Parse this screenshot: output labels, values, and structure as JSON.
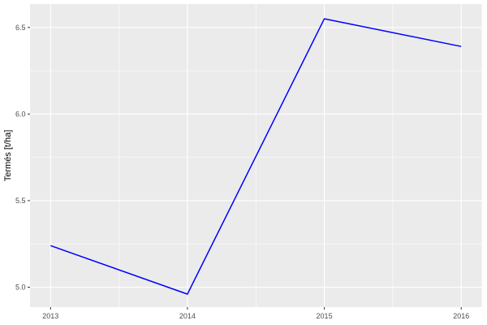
{
  "chart_data": {
    "type": "line",
    "title": "",
    "xlabel": "",
    "ylabel": "Termés [t/ha]",
    "x": [
      2013,
      2014,
      2015,
      2016
    ],
    "series": [
      {
        "name": "Termés",
        "values": [
          5.24,
          4.96,
          6.55,
          6.39
        ]
      }
    ],
    "xlim": [
      2012.85,
      2016.15
    ],
    "ylim": [
      4.885,
      6.635
    ],
    "x_ticks": [
      2013,
      2014,
      2015,
      2016
    ],
    "x_tick_labels": [
      "2013",
      "2014",
      "2015",
      "2016"
    ],
    "y_ticks": [
      5.0,
      5.5,
      6.0,
      6.5
    ],
    "y_tick_labels": [
      "5.0",
      "5.5",
      "6.0",
      "6.5"
    ],
    "x_minor_ticks": [
      2013.5,
      2014.5,
      2015.5
    ],
    "y_minor_ticks": [
      5.25,
      5.75,
      6.25
    ],
    "grid": "on",
    "legend_position": "none",
    "colors": {
      "line": "#0000FF",
      "panel_background": "#EBEBEB",
      "gridline": "#FFFFFF",
      "tick_mark": "#333333",
      "tick_label": "#4D4D4D",
      "axis_title": "#000000",
      "figure_background": "#FFFFFF"
    }
  }
}
